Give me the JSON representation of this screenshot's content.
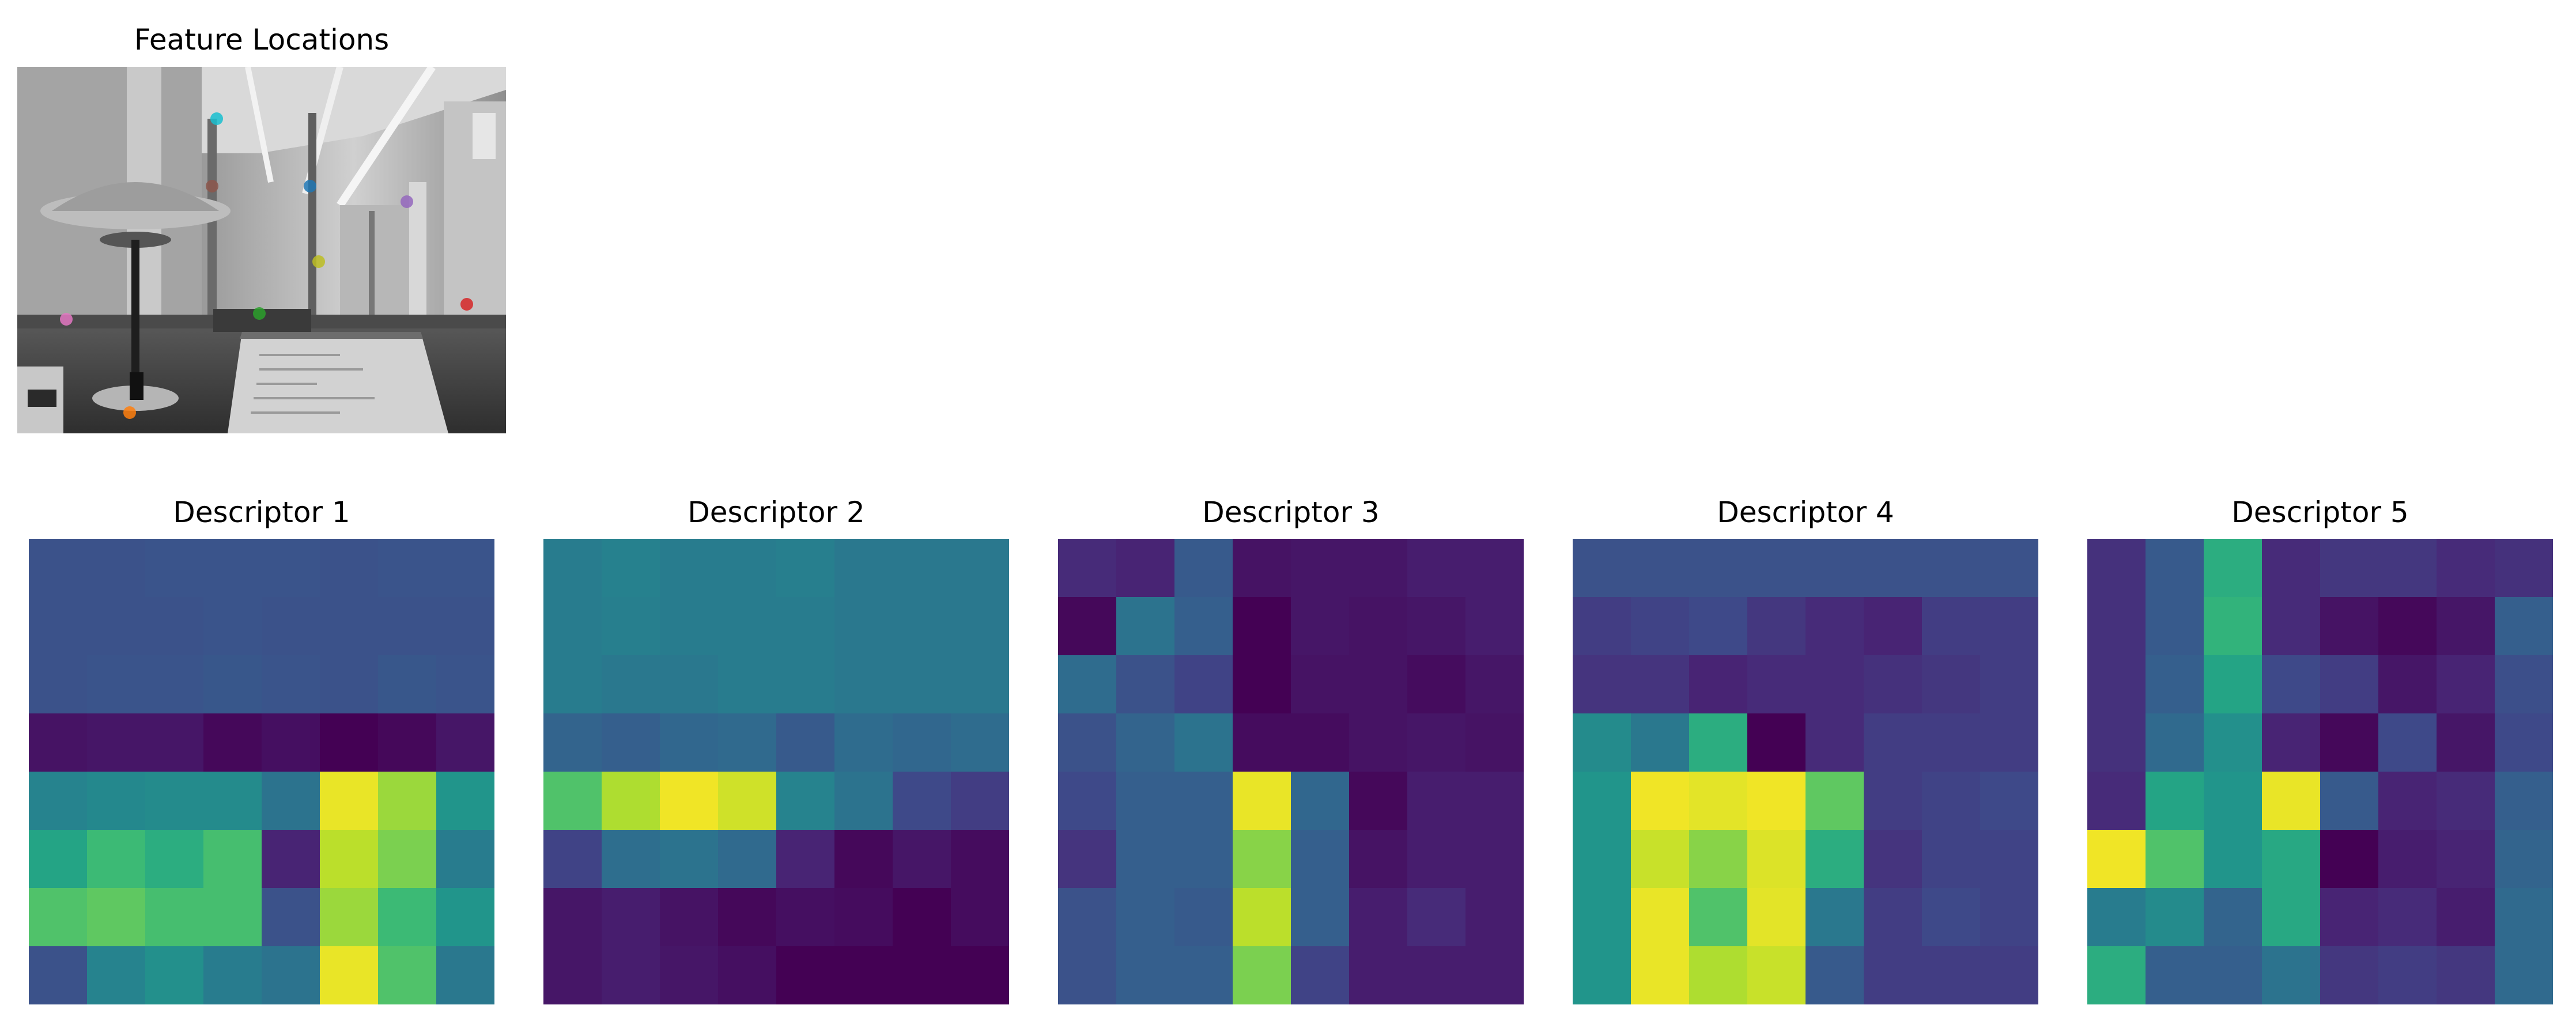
{
  "image_panel": {
    "title": "Feature Locations",
    "keypoint_colors": [
      "#1f77b4",
      "#ff7f0e",
      "#2ca02c",
      "#d62728",
      "#9467bd",
      "#8c564b",
      "#e377c2",
      "#7f7f7f",
      "#bcbd22",
      "#17becf"
    ]
  },
  "chart_data": [
    {
      "type": "heatmap",
      "title": "Descriptor 1",
      "colormap": "viridis",
      "value_range": [
        0,
        1
      ],
      "grid": false,
      "values": [
        [
          0.25,
          0.25,
          0.26,
          0.26,
          0.26,
          0.25,
          0.26,
          0.26
        ],
        [
          0.25,
          0.25,
          0.25,
          0.26,
          0.25,
          0.25,
          0.25,
          0.25
        ],
        [
          0.25,
          0.26,
          0.26,
          0.27,
          0.26,
          0.25,
          0.27,
          0.26
        ],
        [
          0.05,
          0.06,
          0.06,
          0.02,
          0.04,
          0.0,
          0.02,
          0.06
        ],
        [
          0.45,
          0.47,
          0.48,
          0.48,
          0.38,
          0.97,
          0.85,
          0.52
        ],
        [
          0.58,
          0.68,
          0.62,
          0.7,
          0.1,
          0.9,
          0.8,
          0.42
        ],
        [
          0.72,
          0.75,
          0.7,
          0.7,
          0.25,
          0.85,
          0.68,
          0.52
        ],
        [
          0.25,
          0.45,
          0.5,
          0.42,
          0.38,
          0.97,
          0.72,
          0.4
        ]
      ]
    },
    {
      "type": "heatmap",
      "title": "Descriptor 2",
      "colormap": "viridis",
      "value_range": [
        0,
        1
      ],
      "grid": false,
      "values": [
        [
          0.42,
          0.44,
          0.42,
          0.42,
          0.43,
          0.4,
          0.4,
          0.4
        ],
        [
          0.42,
          0.43,
          0.42,
          0.42,
          0.42,
          0.4,
          0.4,
          0.4
        ],
        [
          0.42,
          0.4,
          0.4,
          0.42,
          0.42,
          0.4,
          0.4,
          0.4
        ],
        [
          0.32,
          0.3,
          0.33,
          0.34,
          0.28,
          0.35,
          0.33,
          0.35
        ],
        [
          0.72,
          0.88,
          0.98,
          0.93,
          0.45,
          0.38,
          0.22,
          0.18
        ],
        [
          0.2,
          0.36,
          0.38,
          0.34,
          0.1,
          0.02,
          0.06,
          0.03
        ],
        [
          0.06,
          0.08,
          0.05,
          0.02,
          0.04,
          0.03,
          0.0,
          0.03
        ],
        [
          0.06,
          0.08,
          0.06,
          0.04,
          0.0,
          0.0,
          0.0,
          0.0
        ]
      ]
    },
    {
      "type": "heatmap",
      "title": "Descriptor 3",
      "colormap": "viridis",
      "value_range": [
        0,
        1
      ],
      "grid": false,
      "values": [
        [
          0.12,
          0.1,
          0.28,
          0.05,
          0.06,
          0.06,
          0.08,
          0.08
        ],
        [
          0.02,
          0.38,
          0.3,
          0.0,
          0.06,
          0.05,
          0.06,
          0.08
        ],
        [
          0.35,
          0.25,
          0.2,
          0.0,
          0.05,
          0.05,
          0.03,
          0.06
        ],
        [
          0.25,
          0.32,
          0.38,
          0.03,
          0.03,
          0.05,
          0.06,
          0.05
        ],
        [
          0.22,
          0.3,
          0.3,
          0.97,
          0.33,
          0.02,
          0.08,
          0.08
        ],
        [
          0.15,
          0.3,
          0.3,
          0.82,
          0.3,
          0.05,
          0.08,
          0.08
        ],
        [
          0.25,
          0.3,
          0.28,
          0.9,
          0.3,
          0.08,
          0.12,
          0.08
        ],
        [
          0.25,
          0.3,
          0.3,
          0.8,
          0.2,
          0.08,
          0.08,
          0.08
        ]
      ]
    },
    {
      "type": "heatmap",
      "title": "Descriptor 4",
      "colormap": "viridis",
      "value_range": [
        0,
        1
      ],
      "grid": false,
      "values": [
        [
          0.25,
          0.25,
          0.25,
          0.25,
          0.25,
          0.25,
          0.25,
          0.25
        ],
        [
          0.18,
          0.2,
          0.22,
          0.16,
          0.12,
          0.1,
          0.18,
          0.18
        ],
        [
          0.15,
          0.15,
          0.1,
          0.12,
          0.12,
          0.14,
          0.16,
          0.18
        ],
        [
          0.48,
          0.4,
          0.62,
          0.0,
          0.12,
          0.18,
          0.18,
          0.18
        ],
        [
          0.52,
          0.98,
          0.96,
          0.98,
          0.75,
          0.18,
          0.2,
          0.22
        ],
        [
          0.52,
          0.92,
          0.82,
          0.95,
          0.62,
          0.15,
          0.2,
          0.2
        ],
        [
          0.52,
          0.97,
          0.72,
          0.96,
          0.4,
          0.18,
          0.22,
          0.2
        ],
        [
          0.52,
          0.97,
          0.88,
          0.92,
          0.28,
          0.18,
          0.18,
          0.18
        ]
      ]
    },
    {
      "type": "heatmap",
      "title": "Descriptor 5",
      "colormap": "viridis",
      "value_range": [
        0,
        1
      ],
      "grid": false,
      "values": [
        [
          0.14,
          0.28,
          0.62,
          0.12,
          0.16,
          0.16,
          0.12,
          0.14
        ],
        [
          0.14,
          0.28,
          0.65,
          0.12,
          0.05,
          0.02,
          0.06,
          0.3
        ],
        [
          0.14,
          0.3,
          0.58,
          0.22,
          0.18,
          0.06,
          0.1,
          0.24
        ],
        [
          0.14,
          0.34,
          0.5,
          0.1,
          0.02,
          0.22,
          0.06,
          0.22
        ],
        [
          0.12,
          0.58,
          0.52,
          0.97,
          0.28,
          0.1,
          0.12,
          0.3
        ],
        [
          0.98,
          0.72,
          0.52,
          0.6,
          0.0,
          0.08,
          0.1,
          0.32
        ],
        [
          0.42,
          0.48,
          0.32,
          0.6,
          0.1,
          0.12,
          0.08,
          0.34
        ],
        [
          0.62,
          0.3,
          0.3,
          0.38,
          0.16,
          0.18,
          0.16,
          0.34
        ]
      ]
    }
  ]
}
